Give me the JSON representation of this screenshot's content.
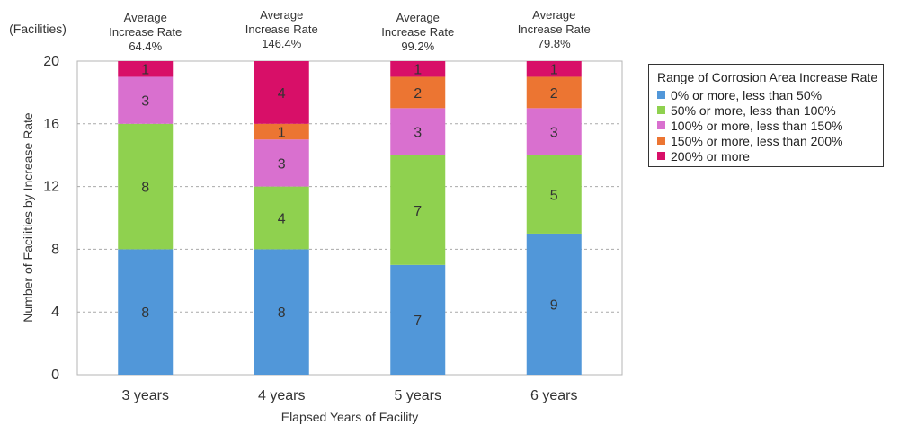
{
  "chart_data": {
    "type": "bar",
    "stacked": true,
    "unit_label": "(Facilities)",
    "xlabel": "Elapsed Years of Facility",
    "ylabel": "Number of Facilities by Increase Rate",
    "ylim": [
      0,
      20
    ],
    "yticks": [
      0,
      4,
      8,
      12,
      16,
      20
    ],
    "grid": true,
    "categories": [
      "3 years",
      "4 years",
      "5 years",
      "6 years"
    ],
    "averages": [
      {
        "label": "Average\nIncrease Rate",
        "value": "64.4%"
      },
      {
        "label": "Average\nIncrease Rate",
        "value": "146.4%"
      },
      {
        "label": "Average\nIncrease Rate",
        "value": "99.2%"
      },
      {
        "label": "Average\nIncrease Rate",
        "value": "79.8%"
      }
    ],
    "series": [
      {
        "name": "0% or more, less than 50%",
        "color": "#5197D9",
        "values": [
          8,
          8,
          7,
          9
        ]
      },
      {
        "name": "50% or more, less than 100%",
        "color": "#8FD14F",
        "values": [
          8,
          4,
          7,
          5
        ]
      },
      {
        "name": "100% or more, less than 150%",
        "color": "#D970CF",
        "values": [
          3,
          3,
          3,
          3
        ]
      },
      {
        "name": "150% or more, less than 200%",
        "color": "#EC7532",
        "values": [
          0,
          1,
          2,
          2
        ]
      },
      {
        "name": "200% or more",
        "color": "#D80F68",
        "values": [
          1,
          4,
          1,
          1
        ]
      }
    ],
    "legend": {
      "title": "Range of Corrosion Area Increase Rate",
      "position": "right"
    }
  }
}
